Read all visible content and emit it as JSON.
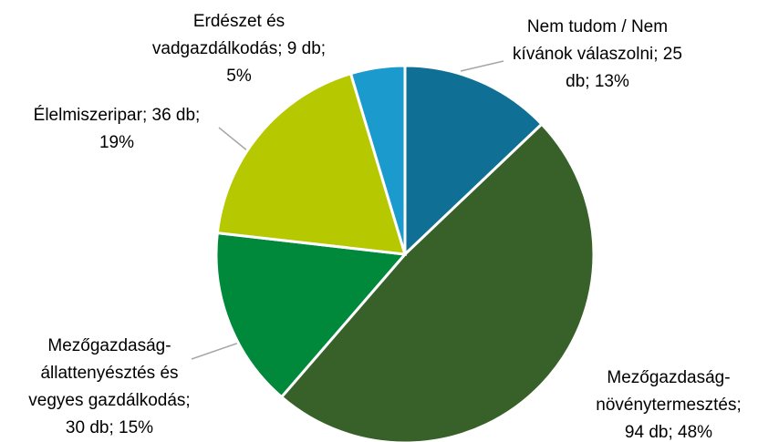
{
  "chart_data": {
    "type": "pie",
    "values": [
      25,
      94,
      30,
      36,
      9
    ],
    "value_labels": [
      "Nem tudom / Nem kívánok válaszolni; 25 db; 13%",
      "Mezőgazdaság-növénytermesztés; 94 db; 48%",
      "Mezőgazdaság-állattenyésztés és vegyes gazdálkodás; 30 db; 15%",
      "Élelmiszeripar; 36 db; 19%",
      "Erdészet és vadgazdálkodás; 9 db; 5%"
    ],
    "colors": [
      "#0f6f94",
      "#386129",
      "#00883b",
      "#b6c800",
      "#1b9acd"
    ]
  }
}
